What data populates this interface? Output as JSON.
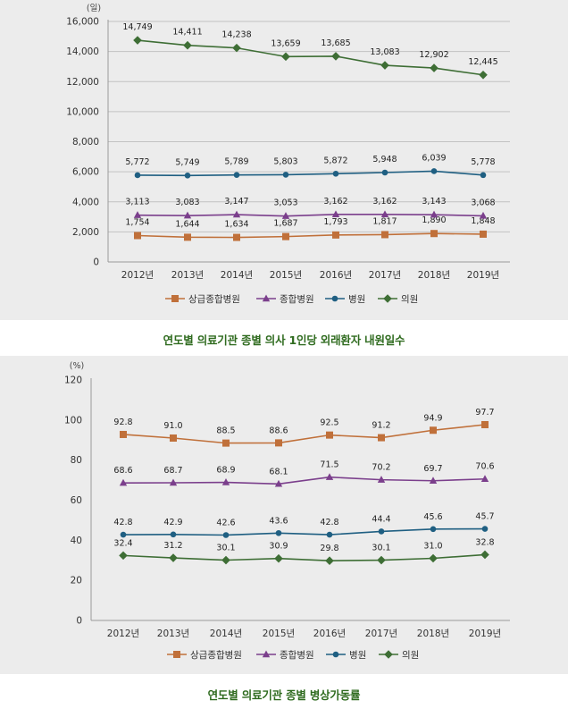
{
  "chart_data": [
    {
      "type": "line",
      "title": "연도별 의료기관 종별 의사 1인당 외래환자 내원일수",
      "unit": "(일)",
      "categories": [
        "2012년",
        "2013년",
        "2014년",
        "2015년",
        "2016년",
        "2017년",
        "2018년",
        "2019년"
      ],
      "ylim": [
        0,
        16000
      ],
      "yticks": [
        0,
        2000,
        4000,
        6000,
        8000,
        10000,
        12000,
        14000,
        16000
      ],
      "ytick_labels": [
        "0",
        "2,000",
        "4,000",
        "6,000",
        "8,000",
        "10,000",
        "12,000",
        "14,000",
        "16,000"
      ],
      "grid": true,
      "legend_position": "bottom",
      "series": [
        {
          "name": "상급종합병원",
          "color": "#c0703a",
          "marker": "square",
          "values": [
            1754,
            1644,
            1634,
            1687,
            1793,
            1817,
            1890,
            1848
          ],
          "labels": [
            "1,754",
            "1,644",
            "1,634",
            "1,687",
            "1,793",
            "1,817",
            "1,890",
            "1,848"
          ]
        },
        {
          "name": "종합병원",
          "color": "#7b3f8c",
          "marker": "triangle",
          "values": [
            3113,
            3083,
            3147,
            3053,
            3162,
            3162,
            3143,
            3068
          ],
          "labels": [
            "3,113",
            "3,083",
            "3,147",
            "3,053",
            "3,162",
            "3,162",
            "3,143",
            "3,068"
          ]
        },
        {
          "name": "병원",
          "color": "#1f5f82",
          "marker": "circle",
          "values": [
            5772,
            5749,
            5789,
            5803,
            5872,
            5948,
            6039,
            5778
          ],
          "labels": [
            "5,772",
            "5,749",
            "5,789",
            "5,803",
            "5,872",
            "5,948",
            "6,039",
            "5,778"
          ]
        },
        {
          "name": "의원",
          "color": "#3e6e35",
          "marker": "diamond",
          "values": [
            14749,
            14411,
            14238,
            13659,
            13685,
            13083,
            12902,
            12445
          ],
          "labels": [
            "14,749",
            "14,411",
            "14,238",
            "13,659",
            "13,685",
            "13,083",
            "12,902",
            "12,445"
          ]
        }
      ]
    },
    {
      "type": "line",
      "title": "연도별 의료기관 종별 병상가동률",
      "unit": "(%)",
      "categories": [
        "2012년",
        "2013년",
        "2014년",
        "2015년",
        "2016년",
        "2017년",
        "2018년",
        "2019년"
      ],
      "ylim": [
        0,
        120
      ],
      "yticks": [
        0,
        20,
        40,
        60,
        80,
        100,
        120
      ],
      "ytick_labels": [
        "0",
        "20",
        "40",
        "60",
        "80",
        "100",
        "120"
      ],
      "grid": false,
      "legend_position": "bottom",
      "series": [
        {
          "name": "상급종합병원",
          "color": "#c0703a",
          "marker": "square",
          "values": [
            92.8,
            91.0,
            88.5,
            88.6,
            92.5,
            91.2,
            94.9,
            97.7
          ],
          "labels": [
            "92.8",
            "91.0",
            "88.5",
            "88.6",
            "92.5",
            "91.2",
            "94.9",
            "97.7"
          ]
        },
        {
          "name": "종합병원",
          "color": "#7b3f8c",
          "marker": "triangle",
          "values": [
            68.6,
            68.7,
            68.9,
            68.1,
            71.5,
            70.2,
            69.7,
            70.6
          ],
          "labels": [
            "68.6",
            "68.7",
            "68.9",
            "68.1",
            "71.5",
            "70.2",
            "69.7",
            "70.6"
          ]
        },
        {
          "name": "병원",
          "color": "#1f5f82",
          "marker": "circle",
          "values": [
            42.8,
            42.9,
            42.6,
            43.6,
            42.8,
            44.4,
            45.6,
            45.7
          ],
          "labels": [
            "42.8",
            "42.9",
            "42.6",
            "43.6",
            "42.8",
            "44.4",
            "45.6",
            "45.7"
          ]
        },
        {
          "name": "의원",
          "color": "#3e6e35",
          "marker": "diamond",
          "values": [
            32.4,
            31.2,
            30.1,
            30.9,
            29.8,
            30.1,
            31.0,
            32.8
          ],
          "labels": [
            "32.4",
            "31.2",
            "30.1",
            "30.9",
            "29.8",
            "30.1",
            "31.0",
            "32.8"
          ]
        }
      ]
    }
  ]
}
